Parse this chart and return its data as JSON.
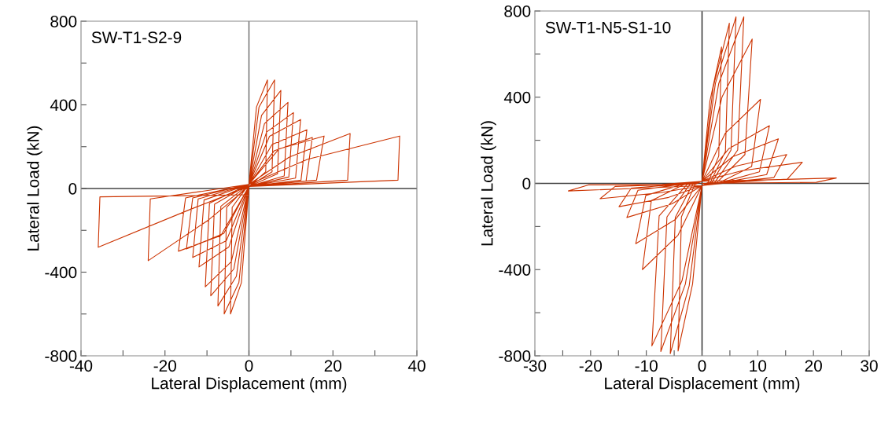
{
  "chart_data": [
    {
      "type": "line",
      "xlabel": "Lateral Displacement (mm)",
      "ylabel": "Lateral Load (kN)",
      "annotations": [
        "SW-T1-S2-9"
      ],
      "xlim": [
        -40,
        40
      ],
      "xticks": [
        -40,
        {
          "value": -30,
          "label": null
        },
        -20,
        {
          "value": -10,
          "label": null
        },
        0,
        {
          "value": 10,
          "label": null
        },
        20,
        {
          "value": 30,
          "label": null
        },
        40
      ],
      "ylim": [
        -800,
        800
      ],
      "yticks": [
        -800,
        {
          "value": -600,
          "label": null
        },
        -400,
        {
          "value": -200,
          "label": null
        },
        0,
        {
          "value": 200,
          "label": null
        },
        400,
        {
          "value": 600,
          "label": null
        },
        800
      ],
      "grid": false,
      "legend": false,
      "marker": "none",
      "line_style": "solid",
      "ref_lines": [
        {
          "axis": "x",
          "value": 0,
          "color": "#666666"
        },
        {
          "axis": "y",
          "value": 0,
          "color": "#444444"
        }
      ],
      "series": [
        {
          "color": "#cc3300",
          "x": [
            0,
            1.8,
            4.4,
            4.0,
            0,
            -1.8,
            -4.4,
            -4.0,
            0,
            2.4,
            6.1,
            5.5,
            0,
            -2.4,
            -5.9,
            -5.3,
            0,
            3.0,
            7.6,
            6.8,
            0,
            -3.0,
            -7.4,
            -6.7,
            0,
            3.7,
            9.3,
            8.4,
            0,
            -3.6,
            -9.1,
            -8.2,
            0,
            4.2,
            10.6,
            9.5,
            0,
            -4.2,
            -10.4,
            -9.4,
            0,
            4.9,
            12.3,
            11.1,
            0,
            -4.8,
            -11.9,
            -10.7,
            0,
            5.5,
            13.8,
            12.4,
            0,
            -5.4,
            -13.4,
            -12.1,
            0,
            6.0,
            15.1,
            13.6,
            0,
            -6.0,
            -14.9,
            -13.4,
            0,
            7.2,
            17.9,
            16.1,
            0,
            -6.7,
            -16.8,
            -15.1,
            0,
            9.6,
            24.1,
            23.5,
            0,
            -9.6,
            -24,
            -23.5,
            0,
            14,
            35.9,
            35.5,
            0,
            -14,
            -35.9,
            -35.5,
            0
          ],
          "values": [
            20,
            390,
            519,
            80,
            10,
            -450,
            -600,
            -90,
            20,
            390,
            519,
            80,
            10,
            -450,
            -600,
            -90,
            20,
            350,
            469,
            70,
            10,
            -420,
            -562,
            -85,
            20,
            310,
            412,
            60,
            10,
            -385,
            -513,
            -75,
            20,
            270,
            363,
            55,
            10,
            -350,
            -470,
            -70,
            20,
            250,
            330,
            50,
            10,
            -280,
            -375,
            -55,
            20,
            210,
            281,
            40,
            10,
            -250,
            -330,
            -50,
            20,
            180,
            244,
            35,
            10,
            -215,
            -289,
            -45,
            20,
            190,
            251,
            40,
            10,
            -225,
            -300,
            -45,
            20,
            150,
            263,
            40,
            10,
            -150,
            -345,
            -50,
            20,
            140,
            251,
            40,
            10,
            -100,
            -281,
            -40,
            -30
          ]
        }
      ]
    },
    {
      "type": "line",
      "xlabel": "Lateral Displacement (mm)",
      "ylabel": "Lateral Load (kN)",
      "annotations": [
        "SW-T1-N5-S1-10"
      ],
      "xlim": [
        -30,
        30
      ],
      "xticks": [
        -30,
        {
          "value": -25,
          "label": null
        },
        -20,
        {
          "value": -15,
          "label": null
        },
        -10,
        {
          "value": -5,
          "label": null
        },
        0,
        {
          "value": 5,
          "label": null
        },
        10,
        {
          "value": 15,
          "label": null
        },
        20,
        {
          "value": 25,
          "label": null
        },
        30
      ],
      "ylim": [
        -800,
        800
      ],
      "yticks": [
        -800,
        {
          "value": -600,
          "label": null
        },
        -400,
        {
          "value": -200,
          "label": null
        },
        0,
        {
          "value": 200,
          "label": null
        },
        400,
        {
          "value": 600,
          "label": null
        },
        800
      ],
      "grid": false,
      "legend": false,
      "marker": "none",
      "line_style": "solid",
      "ref_lines": [
        {
          "axis": "x",
          "value": 0,
          "color": "#222222"
        },
        {
          "axis": "y",
          "value": 0,
          "color": "#444444"
        }
      ],
      "series": [
        {
          "color": "#cc3300",
          "x": [
            0,
            1.4,
            3.5,
            3.0,
            1.1,
            0,
            -1.7,
            -4.3,
            -3.7,
            -1.3,
            0,
            2.0,
            4.9,
            4.2,
            1.5,
            0,
            -2.3,
            -5.7,
            -4.8,
            -1.7,
            0,
            2.4,
            6.1,
            5.2,
            1.8,
            0,
            -3.0,
            -7.4,
            -6.3,
            -2.2,
            0,
            3.0,
            7.5,
            6.4,
            2.3,
            0,
            -3.6,
            -9.0,
            -7.7,
            -2.7,
            0,
            3.6,
            9.0,
            7.7,
            2.7,
            0,
            -4.3,
            -10.7,
            -9.1,
            -3.2,
            0,
            4.2,
            10.5,
            8.9,
            3.2,
            0,
            -4.8,
            -11.9,
            -10.1,
            -3.6,
            0,
            4.8,
            12.1,
            10.3,
            3.6,
            0,
            -5.4,
            -13.5,
            -11.5,
            -4.1,
            0,
            5.5,
            13.7,
            11.6,
            4.1,
            0,
            -6.0,
            -14.9,
            -12.7,
            -4.5,
            0,
            6.1,
            15.2,
            12.9,
            4.6,
            0,
            -7.3,
            -18.3,
            -15.6,
            -5.5,
            0,
            7.2,
            18,
            15.3,
            5.4,
            0,
            -9.6,
            -24,
            -20.4,
            -7.2,
            0,
            9.6,
            24.1,
            20.5,
            0
          ],
          "values": [
            10,
            380,
            633,
            127,
            5,
            -10,
            -467,
            -778,
            -156,
            -5,
            10,
            446,
            743,
            149,
            5,
            -10,
            -474,
            -790,
            -158,
            -5,
            10,
            464,
            773,
            155,
            5,
            -10,
            -468,
            -780,
            -156,
            -5,
            10,
            464,
            773,
            155,
            5,
            -10,
            -452,
            -754,
            -151,
            -5,
            10,
            402,
            670,
            134,
            5,
            -10,
            -240,
            -400,
            -80,
            -5,
            10,
            234,
            390,
            78,
            5,
            -10,
            -168,
            -280,
            -56,
            -5,
            10,
            161,
            268,
            54,
            5,
            -10,
            -95,
            -158,
            -32,
            -5,
            10,
            124,
            207,
            41,
            5,
            -10,
            -65,
            -108,
            -22,
            -5,
            10,
            80,
            134,
            27,
            5,
            -10,
            -43,
            -71,
            -14,
            -5,
            10,
            59,
            98,
            20,
            5,
            -10,
            -21,
            -35,
            -7,
            -5,
            10,
            15,
            25,
            5,
            0
          ]
        }
      ]
    }
  ]
}
